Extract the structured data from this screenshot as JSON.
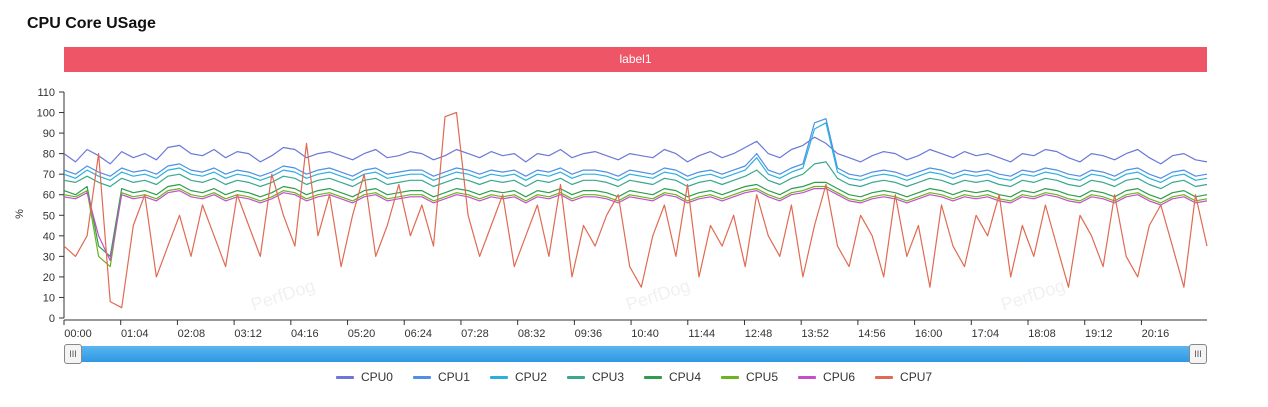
{
  "title": "CPU Core USage",
  "label_bar": "label1",
  "watermark": "PerfDog",
  "slider": {
    "left_handle": "III",
    "right_handle": "III"
  },
  "chart_data": {
    "type": "line",
    "title": "CPU Core USage",
    "xlabel": "",
    "ylabel": "%",
    "ylim": [
      0,
      110
    ],
    "y_ticks": [
      0,
      10,
      20,
      30,
      40,
      50,
      60,
      70,
      80,
      90,
      100,
      110
    ],
    "x_ticks": [
      "00:00",
      "01:04",
      "02:08",
      "03:12",
      "04:16",
      "05:20",
      "06:24",
      "07:28",
      "08:32",
      "09:36",
      "10:40",
      "11:44",
      "12:48",
      "13:52",
      "14:56",
      "16:00",
      "17:04",
      "18:08",
      "19:12",
      "20:16"
    ],
    "x_tick_interval_s": 64,
    "x_max_s": 1290,
    "series": [
      {
        "name": "CPU0",
        "color": "#6b78d8",
        "values": [
          80,
          76,
          82,
          79,
          75,
          81,
          78,
          80,
          77,
          83,
          84,
          80,
          79,
          82,
          78,
          81,
          80,
          76,
          79,
          83,
          82,
          78,
          80,
          81,
          79,
          77,
          80,
          82,
          78,
          79,
          81,
          80,
          77,
          79,
          82,
          80,
          78,
          81,
          79,
          80,
          76,
          80,
          79,
          82,
          78,
          80,
          81,
          79,
          77,
          80,
          79,
          78,
          82,
          80,
          76,
          79,
          81,
          78,
          80,
          83,
          86,
          80,
          78,
          82,
          84,
          88,
          85,
          80,
          78,
          76,
          79,
          81,
          80,
          77,
          79,
          82,
          80,
          78,
          81,
          79,
          80,
          78,
          76,
          80,
          79,
          82,
          81,
          78,
          76,
          80,
          79,
          77,
          80,
          82,
          78,
          75,
          79,
          80,
          77,
          76
        ]
      },
      {
        "name": "CPU1",
        "color": "#4f8fe6",
        "values": [
          72,
          70,
          74,
          71,
          69,
          73,
          71,
          72,
          70,
          74,
          75,
          72,
          71,
          73,
          70,
          72,
          71,
          69,
          71,
          74,
          73,
          70,
          72,
          73,
          71,
          69,
          72,
          73,
          70,
          71,
          72,
          72,
          69,
          71,
          73,
          72,
          70,
          72,
          71,
          72,
          69,
          72,
          71,
          73,
          70,
          72,
          72,
          71,
          69,
          72,
          71,
          70,
          73,
          72,
          69,
          71,
          72,
          70,
          72,
          74,
          80,
          72,
          70,
          73,
          75,
          95,
          97,
          73,
          70,
          69,
          71,
          72,
          71,
          69,
          71,
          73,
          72,
          70,
          72,
          71,
          72,
          70,
          69,
          72,
          71,
          73,
          72,
          70,
          69,
          72,
          71,
          69,
          72,
          73,
          70,
          68,
          71,
          72,
          69,
          70
        ]
      },
      {
        "name": "CPU2",
        "color": "#2bb0dc",
        "values": [
          70,
          68,
          72,
          69,
          67,
          71,
          69,
          70,
          68,
          72,
          73,
          70,
          69,
          71,
          68,
          70,
          69,
          67,
          69,
          72,
          71,
          68,
          70,
          71,
          69,
          67,
          70,
          71,
          68,
          69,
          70,
          70,
          67,
          69,
          71,
          70,
          68,
          70,
          69,
          70,
          67,
          70,
          69,
          71,
          68,
          70,
          70,
          69,
          67,
          70,
          69,
          68,
          71,
          70,
          67,
          69,
          70,
          68,
          70,
          72,
          78,
          70,
          68,
          71,
          73,
          92,
          95,
          71,
          68,
          67,
          69,
          70,
          69,
          67,
          69,
          71,
          70,
          68,
          70,
          69,
          70,
          68,
          67,
          70,
          69,
          71,
          70,
          68,
          67,
          70,
          69,
          67,
          70,
          71,
          68,
          66,
          69,
          70,
          67,
          68
        ]
      },
      {
        "name": "CPU3",
        "color": "#3aa890",
        "values": [
          67,
          66,
          69,
          66,
          64,
          68,
          66,
          67,
          65,
          69,
          70,
          67,
          66,
          68,
          65,
          67,
          66,
          64,
          66,
          69,
          68,
          65,
          67,
          68,
          66,
          64,
          67,
          68,
          65,
          66,
          67,
          67,
          64,
          66,
          68,
          67,
          65,
          67,
          66,
          67,
          64,
          67,
          66,
          68,
          65,
          67,
          67,
          66,
          64,
          67,
          66,
          65,
          68,
          67,
          64,
          66,
          67,
          65,
          67,
          69,
          72,
          67,
          65,
          68,
          70,
          75,
          76,
          68,
          65,
          64,
          66,
          67,
          66,
          64,
          66,
          68,
          67,
          65,
          67,
          66,
          67,
          65,
          64,
          67,
          66,
          68,
          67,
          65,
          64,
          67,
          66,
          64,
          67,
          68,
          65,
          63,
          66,
          67,
          64,
          65
        ]
      },
      {
        "name": "CPU4",
        "color": "#2e9e4e",
        "values": [
          62,
          60,
          64,
          35,
          30,
          63,
          61,
          62,
          60,
          64,
          65,
          62,
          61,
          63,
          60,
          62,
          61,
          59,
          61,
          64,
          63,
          60,
          62,
          63,
          61,
          59,
          62,
          63,
          60,
          61,
          62,
          62,
          59,
          61,
          63,
          62,
          60,
          62,
          61,
          62,
          59,
          62,
          61,
          63,
          60,
          62,
          62,
          61,
          59,
          62,
          61,
          60,
          63,
          62,
          59,
          61,
          62,
          60,
          62,
          64,
          65,
          62,
          60,
          63,
          64,
          66,
          66,
          63,
          60,
          59,
          61,
          62,
          61,
          59,
          61,
          63,
          62,
          60,
          62,
          61,
          62,
          60,
          59,
          62,
          61,
          63,
          62,
          60,
          59,
          62,
          61,
          59,
          62,
          63,
          60,
          58,
          61,
          62,
          59,
          60
        ]
      },
      {
        "name": "CPU5",
        "color": "#6ab41e",
        "values": [
          60,
          59,
          62,
          30,
          25,
          61,
          59,
          60,
          58,
          62,
          63,
          60,
          59,
          61,
          58,
          60,
          59,
          57,
          59,
          62,
          61,
          58,
          60,
          61,
          59,
          57,
          60,
          61,
          58,
          59,
          60,
          60,
          57,
          59,
          61,
          60,
          58,
          60,
          59,
          60,
          57,
          60,
          59,
          61,
          58,
          60,
          60,
          59,
          57,
          60,
          59,
          58,
          61,
          60,
          57,
          59,
          60,
          58,
          60,
          62,
          63,
          60,
          58,
          61,
          62,
          64,
          64,
          61,
          58,
          57,
          59,
          60,
          59,
          57,
          59,
          61,
          60,
          58,
          60,
          59,
          60,
          58,
          57,
          60,
          59,
          61,
          60,
          58,
          57,
          60,
          59,
          57,
          60,
          61,
          58,
          56,
          59,
          60,
          57,
          58
        ]
      },
      {
        "name": "CPU6",
        "color": "#c44fcc",
        "values": [
          59,
          58,
          61,
          40,
          28,
          60,
          58,
          59,
          57,
          61,
          62,
          59,
          58,
          60,
          57,
          59,
          58,
          56,
          58,
          61,
          60,
          57,
          59,
          60,
          58,
          56,
          59,
          60,
          57,
          58,
          59,
          59,
          56,
          58,
          60,
          59,
          57,
          59,
          58,
          59,
          56,
          59,
          58,
          60,
          57,
          59,
          59,
          58,
          56,
          59,
          58,
          57,
          60,
          59,
          56,
          58,
          59,
          57,
          59,
          61,
          62,
          59,
          57,
          60,
          61,
          63,
          63,
          60,
          57,
          56,
          58,
          59,
          58,
          56,
          58,
          60,
          59,
          57,
          59,
          58,
          59,
          57,
          56,
          59,
          58,
          60,
          59,
          57,
          56,
          59,
          58,
          56,
          59,
          60,
          57,
          55,
          58,
          59,
          56,
          57
        ]
      },
      {
        "name": "CPU7",
        "color": "#e06a52",
        "values": [
          35,
          30,
          40,
          80,
          8,
          5,
          45,
          60,
          20,
          35,
          50,
          30,
          55,
          40,
          25,
          60,
          45,
          30,
          70,
          50,
          35,
          85,
          40,
          60,
          25,
          50,
          70,
          30,
          45,
          65,
          40,
          55,
          35,
          98,
          100,
          50,
          30,
          45,
          60,
          25,
          40,
          55,
          30,
          65,
          20,
          45,
          35,
          50,
          60,
          25,
          15,
          40,
          55,
          30,
          65,
          20,
          45,
          35,
          50,
          25,
          60,
          40,
          30,
          55,
          20,
          45,
          65,
          35,
          25,
          50,
          40,
          20,
          60,
          30,
          45,
          15,
          55,
          35,
          25,
          50,
          40,
          60,
          20,
          45,
          30,
          55,
          35,
          15,
          50,
          40,
          25,
          60,
          30,
          20,
          45,
          55,
          35,
          15,
          60,
          35
        ]
      }
    ]
  },
  "legend": [
    "CPU0",
    "CPU1",
    "CPU2",
    "CPU3",
    "CPU4",
    "CPU5",
    "CPU6",
    "CPU7"
  ]
}
